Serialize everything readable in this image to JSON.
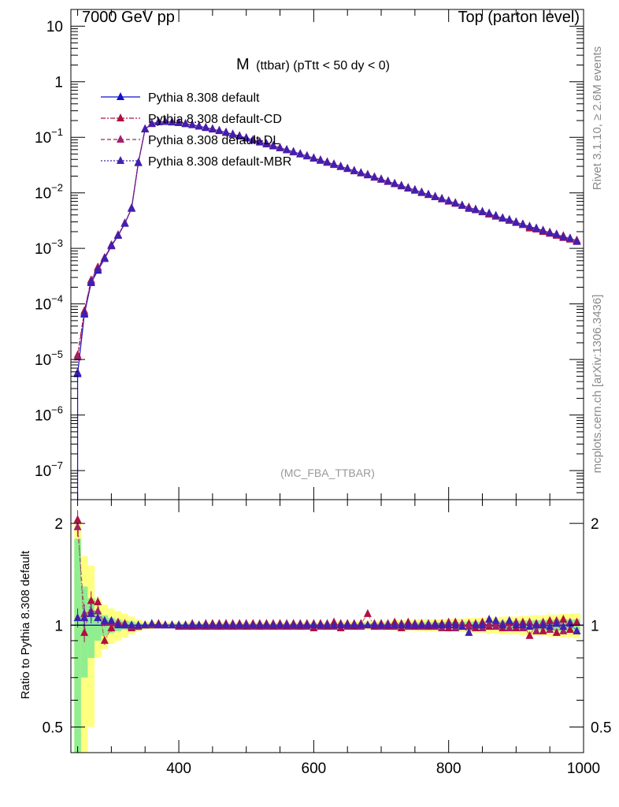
{
  "header": {
    "left": "7000 GeV pp",
    "right": "Top (parton level)"
  },
  "side_labels": {
    "rivet": "Rivet 3.1.10, ≥ 2.6M events",
    "mcplots": "mcplots.cern.ch [arXiv:1306.3436]"
  },
  "colors": {
    "default": "#1010cc",
    "cd": "#b01040",
    "dl": "#a0206a",
    "mbr": "#4020b0",
    "band_outer": "#ffff80",
    "band_inner": "#90ee90"
  },
  "chart_data": [
    {
      "type": "line",
      "title_main": "M",
      "title_sub": "(ttbar) (pTtt < 50 dy < 0)",
      "watermark": "(MC_FBA_TTBAR)",
      "yscale": "log",
      "xlim": [
        240,
        1000
      ],
      "ylim": [
        3e-08,
        20
      ],
      "y_ticks": [
        {
          "v": 1e-07,
          "base": "10",
          "exp": "−7"
        },
        {
          "v": 1e-06,
          "base": "10",
          "exp": "−6"
        },
        {
          "v": 1e-05,
          "base": "10",
          "exp": "−5"
        },
        {
          "v": 0.0001,
          "base": "10",
          "exp": "−4"
        },
        {
          "v": 0.001,
          "base": "10",
          "exp": "−3"
        },
        {
          "v": 0.01,
          "base": "10",
          "exp": "−2"
        },
        {
          "v": 0.1,
          "base": "10",
          "exp": "−1"
        },
        {
          "v": 1,
          "base": "1",
          "exp": ""
        },
        {
          "v": 10,
          "base": "10",
          "exp": ""
        }
      ],
      "legend": {
        "placement": "top-left",
        "entries": [
          "Pythia 8.308 default",
          "Pythia 8.308 default-CD",
          "Pythia 8.308 default-DL",
          "Pythia 8.308 default-MBR"
        ]
      },
      "x": [
        250,
        260,
        270,
        280,
        290,
        300,
        310,
        320,
        330,
        340,
        350,
        360,
        370,
        380,
        390,
        400,
        410,
        420,
        430,
        440,
        450,
        460,
        470,
        480,
        490,
        500,
        510,
        520,
        530,
        540,
        550,
        560,
        570,
        580,
        590,
        600,
        610,
        620,
        630,
        640,
        650,
        660,
        670,
        680,
        690,
        700,
        710,
        720,
        730,
        740,
        750,
        760,
        770,
        780,
        790,
        800,
        810,
        820,
        830,
        840,
        850,
        860,
        870,
        880,
        890,
        900,
        910,
        920,
        930,
        940,
        950,
        960,
        970,
        980,
        990
      ],
      "series": [
        {
          "name": "Pythia 8.308 default",
          "y": [
            5.5e-06,
            6.5e-05,
            0.00024,
            0.0004,
            0.00065,
            0.0011,
            0.0017,
            0.0028,
            0.0053,
            0.035,
            0.14,
            0.175,
            0.188,
            0.19,
            0.187,
            0.182,
            0.175,
            0.167,
            0.158,
            0.149,
            0.14,
            0.131,
            0.122,
            0.113,
            0.105,
            0.097,
            0.089,
            0.082,
            0.076,
            0.07,
            0.0645,
            0.0595,
            0.0545,
            0.05,
            0.046,
            0.042,
            0.0385,
            0.0355,
            0.0325,
            0.0297,
            0.0272,
            0.0249,
            0.0228,
            0.0209,
            0.0191,
            0.0175,
            0.016,
            0.0146,
            0.0134,
            0.0122,
            0.0112,
            0.0102,
            0.0093,
            0.0085,
            0.0078,
            0.0071,
            0.0065,
            0.00595,
            0.00545,
            0.005,
            0.00455,
            0.00415,
            0.0038,
            0.0035,
            0.0032,
            0.00295,
            0.0027,
            0.00247,
            0.00227,
            0.00208,
            0.00192,
            0.00176,
            0.00162,
            0.0015,
            0.00138
          ]
        },
        {
          "name": "Pythia 8.308 default-CD",
          "y": [
            1.2e-05,
            7.5e-05,
            0.00027,
            0.00046,
            0.00068,
            0.00115,
            0.00175,
            0.00285,
            0.0052,
            0.0345,
            0.141,
            0.176,
            0.19,
            0.191,
            0.188,
            0.181,
            0.176,
            0.166,
            0.159,
            0.148,
            0.141,
            0.13,
            0.123,
            0.112,
            0.106,
            0.096,
            0.09,
            0.081,
            0.077,
            0.069,
            0.065,
            0.059,
            0.055,
            0.0495,
            0.0465,
            0.0415,
            0.039,
            0.035,
            0.033,
            0.0293,
            0.0275,
            0.0246,
            0.023,
            0.0214,
            0.0189,
            0.0177,
            0.0158,
            0.0148,
            0.0132,
            0.0124,
            0.011,
            0.0103,
            0.0092,
            0.0086,
            0.0079,
            0.007,
            0.0066,
            0.0059,
            0.0055,
            0.0049,
            0.0046,
            0.0041,
            0.00385,
            0.00345,
            0.00325,
            0.0029,
            0.00275,
            0.0023,
            0.0023,
            0.002,
            0.00195,
            0.0017,
            0.00168,
            0.00145,
            0.0014
          ]
        },
        {
          "name": "Pythia 8.308 default-DL",
          "y": [
            1.1e-05,
            7e-05,
            0.00026,
            0.00044,
            0.00066,
            0.00112,
            0.00172,
            0.00282,
            0.00525,
            0.0348,
            0.14,
            0.175,
            0.189,
            0.19,
            0.186,
            0.182,
            0.174,
            0.168,
            0.157,
            0.15,
            0.139,
            0.132,
            0.121,
            0.114,
            0.104,
            0.098,
            0.088,
            0.083,
            0.075,
            0.071,
            0.064,
            0.06,
            0.054,
            0.0505,
            0.0455,
            0.0425,
            0.038,
            0.036,
            0.032,
            0.03,
            0.027,
            0.0252,
            0.0226,
            0.021,
            0.0193,
            0.0173,
            0.0162,
            0.0144,
            0.0136,
            0.012,
            0.0114,
            0.01,
            0.0094,
            0.0084,
            0.0077,
            0.0072,
            0.0064,
            0.006,
            0.0054,
            0.00505,
            0.0045,
            0.0042,
            0.00375,
            0.00355,
            0.00315,
            0.003,
            0.00265,
            0.0025,
            0.0022,
            0.00212,
            0.00185,
            0.0018,
            0.00155,
            0.00152,
            0.00132
          ]
        },
        {
          "name": "Pythia 8.308 default-MBR",
          "y": [
            5.8e-06,
            6.8e-05,
            0.00025,
            0.00042,
            0.00067,
            0.00113,
            0.0017,
            0.0028,
            0.0053,
            0.035,
            0.14,
            0.176,
            0.189,
            0.19,
            0.187,
            0.183,
            0.175,
            0.167,
            0.158,
            0.149,
            0.14,
            0.131,
            0.122,
            0.113,
            0.105,
            0.097,
            0.089,
            0.082,
            0.076,
            0.07,
            0.0645,
            0.0595,
            0.0545,
            0.05,
            0.046,
            0.042,
            0.0385,
            0.0355,
            0.0325,
            0.0297,
            0.0272,
            0.0249,
            0.0228,
            0.0209,
            0.0191,
            0.0175,
            0.016,
            0.0146,
            0.0134,
            0.0122,
            0.0112,
            0.0102,
            0.0093,
            0.0085,
            0.0078,
            0.0071,
            0.0065,
            0.0059,
            0.0052,
            0.005,
            0.00455,
            0.0043,
            0.0039,
            0.0035,
            0.0033,
            0.00295,
            0.0027,
            0.00245,
            0.0023,
            0.00208,
            0.0019,
            0.00178,
            0.0016,
            0.00152,
            0.00132
          ]
        }
      ]
    },
    {
      "type": "line",
      "ylabel": "Ratio to Pythia 8.308 default",
      "yscale": "log",
      "xlim": [
        240,
        1000
      ],
      "ylim": [
        0.42,
        2.35
      ],
      "x_ticks": [
        400,
        600,
        800,
        1000
      ],
      "y_ticks": [
        {
          "v": 0.5,
          "label": "0.5"
        },
        {
          "v": 1,
          "label": "1"
        },
        {
          "v": 2,
          "label": "2"
        }
      ],
      "band": {
        "outer_half_width": [
          1.0,
          0.6,
          0.5,
          0.2,
          0.15,
          0.12,
          0.1,
          0.08,
          0.06,
          0.04,
          0.03,
          0.025,
          0.022,
          0.02,
          0.02,
          0.02,
          0.02,
          0.02,
          0.02,
          0.02,
          0.02,
          0.02,
          0.02,
          0.02,
          0.02,
          0.02,
          0.02,
          0.02,
          0.02,
          0.02,
          0.02,
          0.02,
          0.02,
          0.02,
          0.02,
          0.02,
          0.02,
          0.02,
          0.025,
          0.025,
          0.025,
          0.025,
          0.03,
          0.03,
          0.03,
          0.03,
          0.03,
          0.035,
          0.035,
          0.035,
          0.035,
          0.04,
          0.04,
          0.04,
          0.04,
          0.045,
          0.045,
          0.045,
          0.05,
          0.05,
          0.05,
          0.055,
          0.055,
          0.06,
          0.06,
          0.06,
          0.065,
          0.065,
          0.07,
          0.07,
          0.075,
          0.075,
          0.08,
          0.08,
          0.085
        ],
        "inner_half_width": [
          0.8,
          0.3,
          0.2,
          0.1,
          0.07,
          0.05,
          0.04,
          0.03,
          0.025,
          0.015,
          0.01,
          0.01,
          0.01,
          0.01,
          0.01,
          0.01,
          0.01,
          0.01,
          0.01,
          0.01,
          0.01,
          0.01,
          0.01,
          0.01,
          0.01,
          0.01,
          0.01,
          0.01,
          0.01,
          0.01,
          0.01,
          0.01,
          0.01,
          0.01,
          0.01,
          0.01,
          0.01,
          0.01,
          0.012,
          0.012,
          0.012,
          0.012,
          0.015,
          0.015,
          0.015,
          0.015,
          0.015,
          0.018,
          0.018,
          0.018,
          0.018,
          0.02,
          0.02,
          0.02,
          0.02,
          0.022,
          0.022,
          0.022,
          0.025,
          0.025,
          0.025,
          0.028,
          0.028,
          0.03,
          0.03,
          0.03,
          0.032,
          0.032,
          0.035,
          0.035,
          0.038,
          0.038,
          0.04,
          0.04,
          0.042
        ]
      },
      "x": [
        250,
        260,
        270,
        280,
        290,
        300,
        310,
        320,
        330,
        340,
        350,
        360,
        370,
        380,
        390,
        400,
        410,
        420,
        430,
        440,
        450,
        460,
        470,
        480,
        490,
        500,
        510,
        520,
        530,
        540,
        550,
        560,
        570,
        580,
        590,
        600,
        610,
        620,
        630,
        640,
        650,
        660,
        670,
        680,
        690,
        700,
        710,
        720,
        730,
        740,
        750,
        760,
        770,
        780,
        790,
        800,
        810,
        820,
        830,
        840,
        850,
        860,
        870,
        880,
        890,
        900,
        910,
        920,
        930,
        940,
        950,
        960,
        970,
        980,
        990
      ],
      "series": [
        {
          "name": "Pythia 8.308 default-CD",
          "y": [
            2.05,
            0.95,
            1.18,
            1.17,
            0.9,
            0.98,
            1.02,
            1.01,
            0.98,
            0.99,
            1.0,
            1.0,
            1.01,
            1.0,
            1.0,
            0.99,
            1.0,
            0.99,
            1.0,
            0.99,
            1.01,
            0.99,
            1.01,
            0.99,
            1.01,
            0.99,
            1.01,
            0.99,
            1.01,
            0.99,
            1.01,
            0.99,
            1.01,
            0.99,
            1.01,
            0.98,
            1.01,
            0.99,
            1.02,
            0.98,
            1.01,
            0.99,
            1.01,
            1.08,
            0.99,
            1.01,
            0.99,
            1.02,
            0.98,
            1.02,
            0.99,
            1.01,
            0.99,
            1.01,
            1.01,
            0.98,
            1.02,
            0.99,
            1.01,
            0.98,
            1.02,
            0.99,
            1.01,
            0.98,
            1.02,
            0.98,
            1.02,
            0.93,
            1.01,
            0.96,
            1.03,
            0.95,
            1.04,
            0.97,
            1.02
          ]
        },
        {
          "name": "Pythia 8.308 default-DL",
          "y": [
            1.95,
            1.08,
            1.1,
            1.1,
            1.02,
            1.02,
            1.01,
            1.0,
            0.99,
            0.99,
            1.0,
            1.0,
            1.0,
            1.0,
            1.0,
            1.0,
            0.99,
            1.01,
            0.99,
            1.01,
            0.99,
            1.01,
            0.99,
            1.01,
            0.99,
            1.01,
            0.99,
            1.01,
            0.99,
            1.01,
            0.99,
            1.01,
            0.99,
            1.01,
            0.99,
            1.01,
            0.99,
            1.01,
            0.99,
            1.01,
            0.99,
            1.01,
            0.99,
            1.0,
            1.01,
            0.99,
            1.01,
            0.99,
            1.01,
            0.99,
            1.01,
            0.99,
            1.01,
            0.99,
            0.98,
            1.02,
            0.98,
            1.01,
            0.99,
            1.01,
            0.98,
            1.01,
            0.99,
            1.01,
            0.98,
            1.02,
            0.98,
            1.02,
            0.96,
            1.02,
            0.97,
            1.03,
            0.96,
            1.02,
            0.96
          ]
        },
        {
          "name": "Pythia 8.308 default-MBR",
          "y": [
            1.05,
            1.05,
            1.08,
            1.05,
            1.03,
            1.03,
            1.0,
            1.0,
            1.0,
            1.0,
            1.0,
            1.01,
            1.0,
            1.0,
            1.0,
            1.0,
            1.0,
            1.0,
            1.0,
            1.0,
            1.0,
            1.0,
            1.0,
            1.0,
            1.0,
            1.0,
            1.0,
            1.0,
            1.0,
            1.0,
            1.0,
            1.0,
            1.0,
            1.0,
            1.0,
            1.0,
            1.0,
            1.0,
            1.0,
            1.0,
            1.0,
            1.0,
            1.0,
            1.0,
            1.0,
            1.0,
            1.0,
            1.0,
            1.0,
            1.0,
            1.0,
            1.0,
            1.0,
            1.0,
            1.0,
            1.0,
            1.0,
            0.99,
            0.95,
            1.0,
            1.0,
            1.04,
            1.03,
            1.0,
            1.03,
            1.0,
            1.0,
            0.99,
            1.0,
            1.0,
            0.99,
            1.01,
            0.99,
            1.01,
            0.96
          ]
        }
      ]
    }
  ]
}
